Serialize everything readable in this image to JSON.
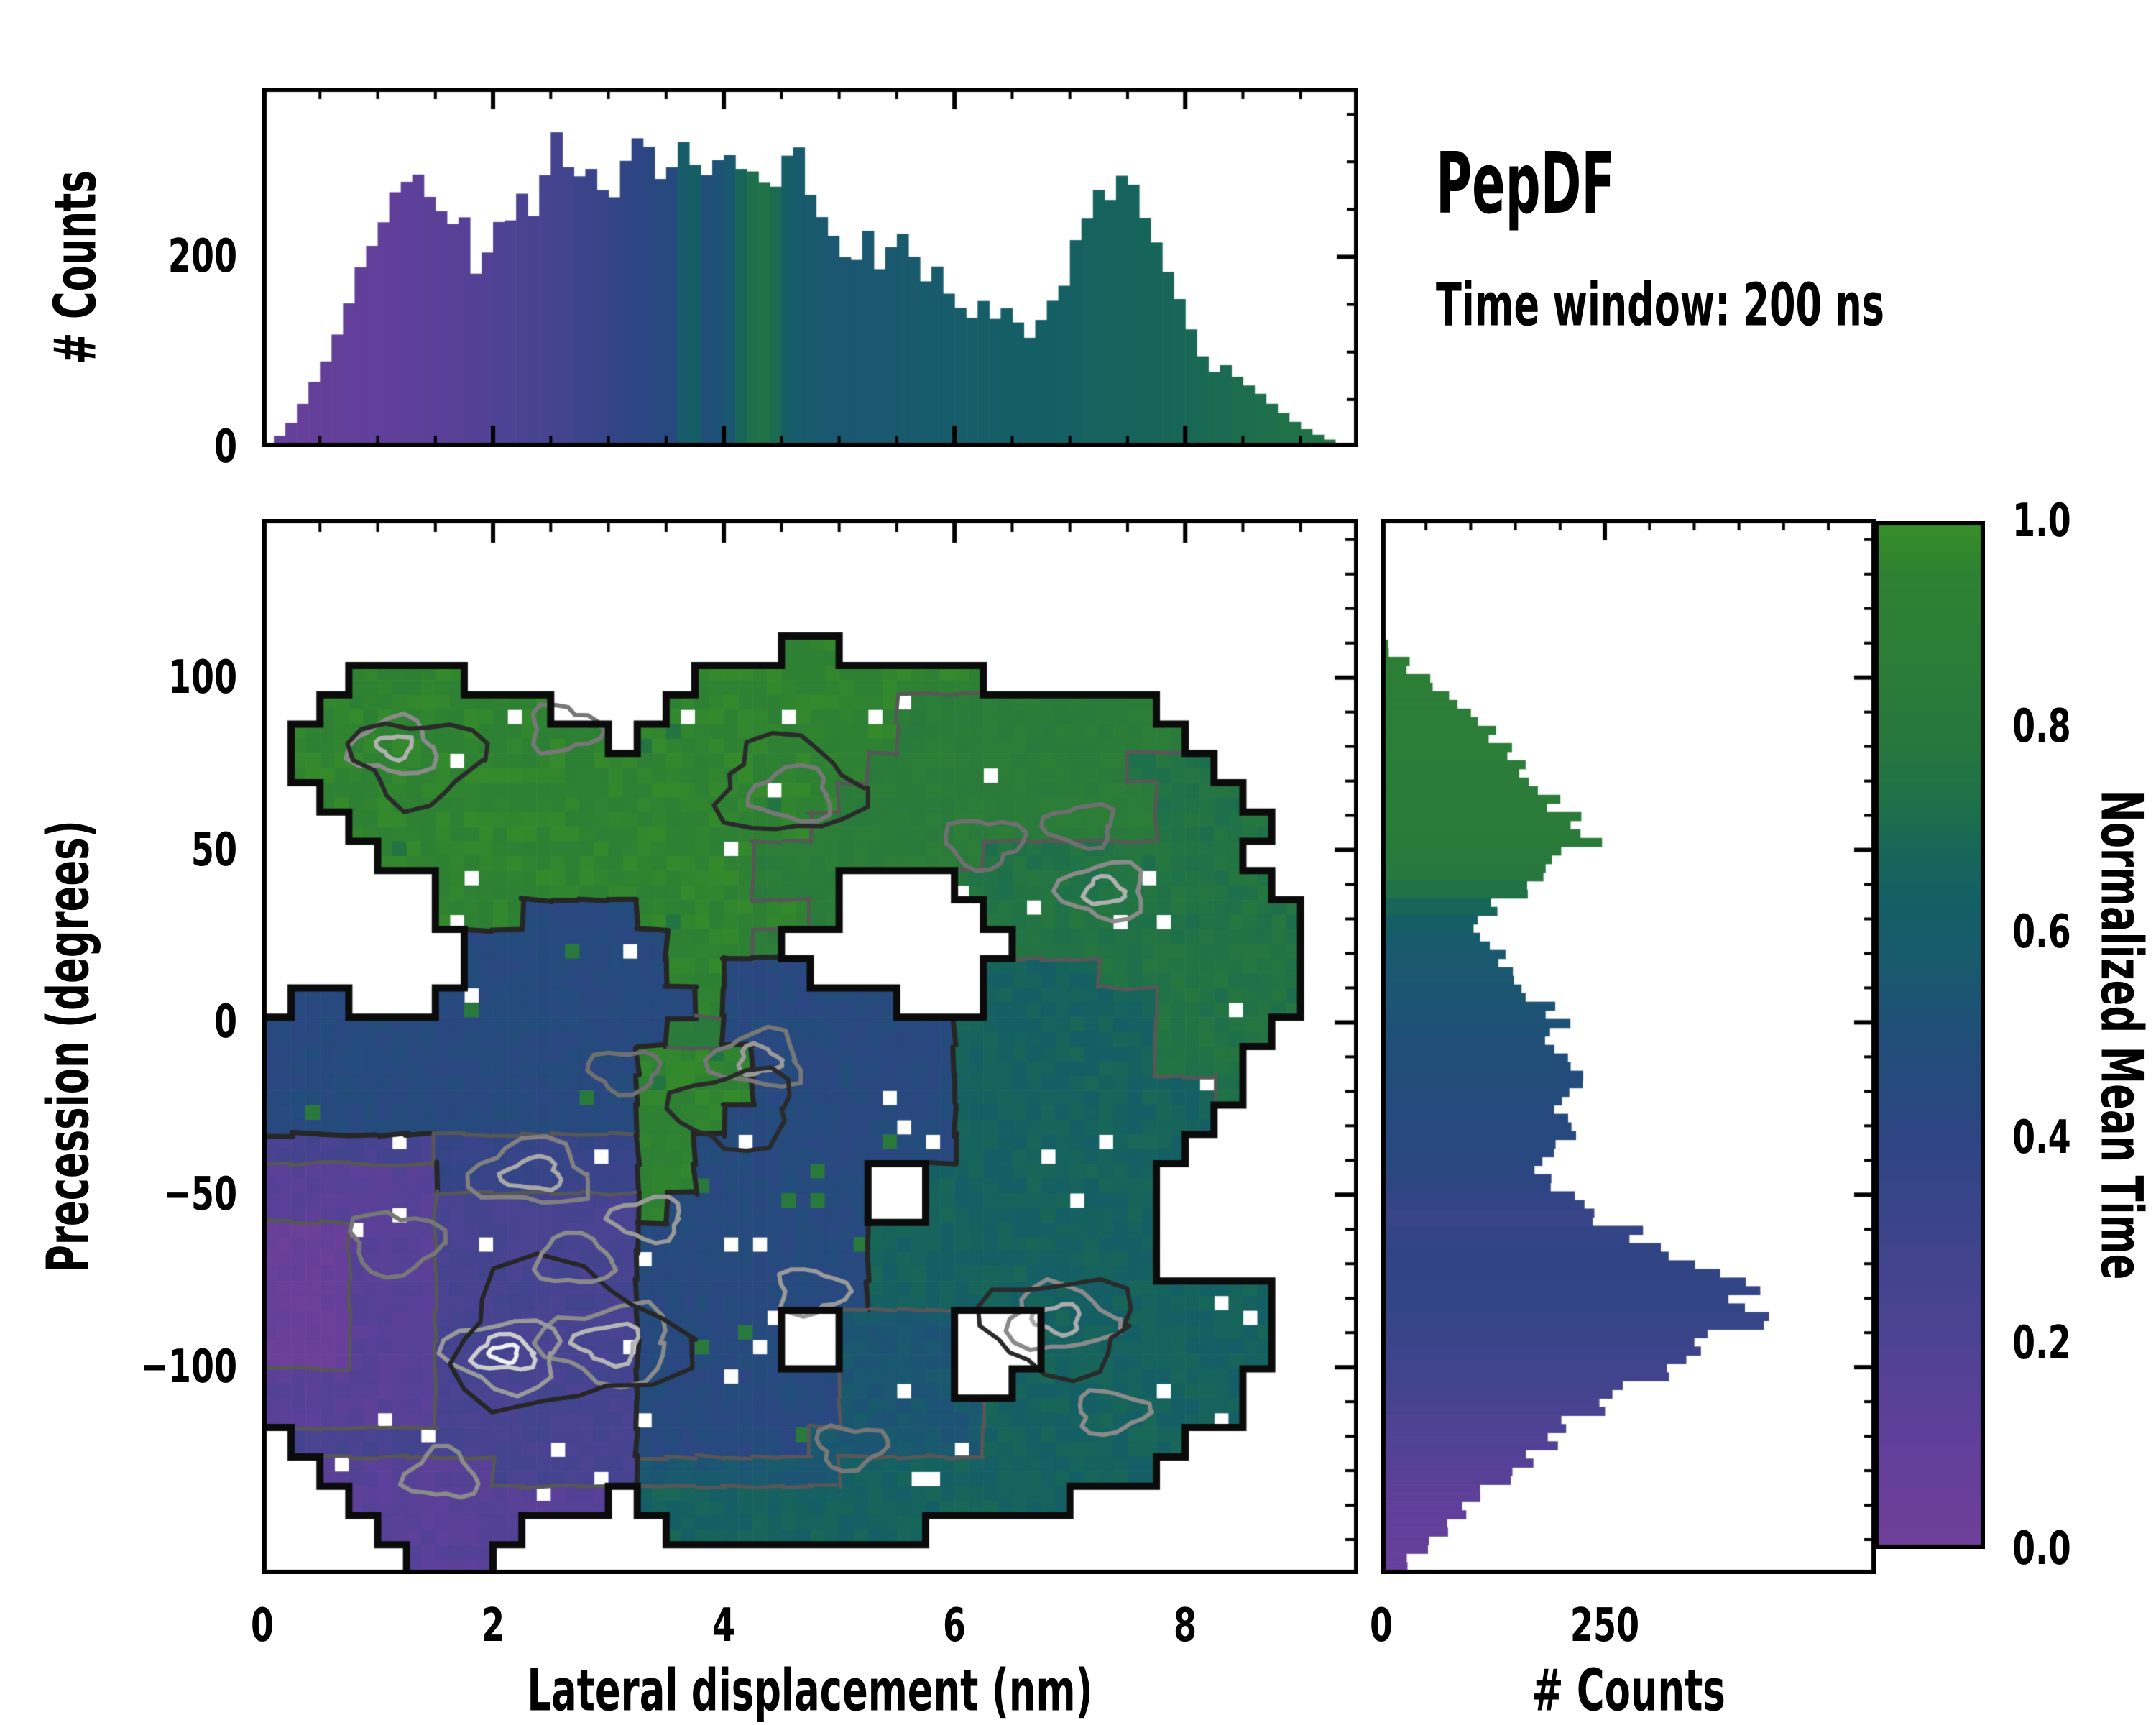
{
  "title": {
    "text": "PepDF",
    "subtitle": "Time window: 200 ns"
  },
  "colors": {
    "background": "#ffffff",
    "axis": "#000000",
    "outline": "#0b0b0b",
    "contour_dark": "#262626",
    "contour_mid": "#575757"
  },
  "colormap": {
    "name": "purple-blue-green",
    "stops": [
      [
        0.0,
        "#6f3f99"
      ],
      [
        0.1,
        "#613f9a"
      ],
      [
        0.2,
        "#4f4294"
      ],
      [
        0.3,
        "#3e448c"
      ],
      [
        0.4,
        "#2e4583"
      ],
      [
        0.5,
        "#204e79"
      ],
      [
        0.57,
        "#195a6d"
      ],
      [
        0.63,
        "#145f64"
      ],
      [
        0.68,
        "#186658"
      ],
      [
        0.73,
        "#1f7148"
      ],
      [
        0.78,
        "#267640"
      ],
      [
        0.85,
        "#2b7c39"
      ],
      [
        0.95,
        "#2e8132"
      ],
      [
        1.0,
        "#389027"
      ]
    ]
  },
  "chart_data": [
    {
      "id": "top_histogram",
      "type": "bar",
      "orientation": "vertical",
      "ylabel": "# Counts",
      "xlim": [
        0,
        9.5
      ],
      "ylim": [
        0,
        378
      ],
      "bin_width": 0.1,
      "x_start": 0,
      "values": [
        4,
        12,
        25,
        45,
        70,
        90,
        120,
        150,
        185,
        212,
        240,
        262,
        275,
        290,
        268,
        248,
        232,
        240,
        188,
        205,
        232,
        245,
        265,
        250,
        290,
        340,
        300,
        280,
        292,
        278,
        268,
        295,
        325,
        310,
        285,
        295,
        330,
        305,
        285,
        300,
        312,
        290,
        295,
        282,
        270,
        300,
        315,
        270,
        245,
        225,
        205,
        195,
        225,
        185,
        205,
        230,
        195,
        175,
        185,
        165,
        150,
        140,
        155,
        135,
        145,
        128,
        118,
        132,
        150,
        172,
        215,
        245,
        270,
        255,
        292,
        268,
        240,
        210,
        185,
        155,
        125,
        95,
        80,
        85,
        75,
        65,
        55,
        45,
        35,
        26,
        19,
        13,
        8,
        4,
        2
      ],
      "color_t": [
        0.07,
        0.07,
        0.07,
        0.07,
        0.08,
        0.08,
        0.08,
        0.09,
        0.09,
        0.1,
        0.1,
        0.11,
        0.12,
        0.12,
        0.13,
        0.14,
        0.15,
        0.16,
        0.17,
        0.18,
        0.2,
        0.21,
        0.22,
        0.24,
        0.25,
        0.27,
        0.28,
        0.3,
        0.32,
        0.34,
        0.36,
        0.38,
        0.4,
        0.42,
        0.44,
        0.46,
        0.6,
        0.62,
        0.5,
        0.52,
        0.56,
        0.68,
        0.72,
        0.74,
        0.7,
        0.62,
        0.58,
        0.57,
        0.56,
        0.55,
        0.55,
        0.55,
        0.56,
        0.55,
        0.56,
        0.57,
        0.57,
        0.58,
        0.58,
        0.59,
        0.6,
        0.6,
        0.61,
        0.61,
        0.62,
        0.62,
        0.62,
        0.63,
        0.63,
        0.64,
        0.64,
        0.65,
        0.65,
        0.66,
        0.66,
        0.66,
        0.67,
        0.67,
        0.68,
        0.68,
        0.69,
        0.69,
        0.7,
        0.7,
        0.71,
        0.71,
        0.72,
        0.72,
        0.73,
        0.73,
        0.74,
        0.74,
        0.75,
        0.75,
        0.75
      ],
      "yticks_major": [
        0,
        200
      ],
      "yticklabels": [
        "0",
        "200"
      ],
      "yticks_minor_step": 50,
      "xticks_major": [
        0,
        2,
        4,
        6,
        8
      ],
      "xticks_minor_step": 0.5
    },
    {
      "id": "main_heatmap",
      "type": "heatmap",
      "xlabel": "Lateral displacement (nm)",
      "ylabel": "Precession (degrees)",
      "xlim": [
        0,
        9.5
      ],
      "ylim": [
        -160,
        146
      ],
      "xticks_major": [
        0,
        2,
        4,
        6,
        8
      ],
      "xticklabels": [
        "0",
        "2",
        "4",
        "6",
        "8"
      ],
      "xticks_minor_step": 0.5,
      "yticks_major": [
        100,
        50,
        0,
        -50,
        -100
      ],
      "yticklabels": [
        "100",
        "50",
        "0",
        "−50",
        "−100"
      ],
      "yticks_minor_step": 10,
      "grid_cols": 38,
      "grid_rows": 36,
      "value_encoding": "char digit d means normalized mean time (d+0.5)/10, dot means no data",
      "cell_values": [
        "......................................",
        "......................................",
        "......................................",
        "......................................",
        "..................99..................",
        "...9999........9999999999.............",
        "..99999999....99999999888888888.......",
        ".99999999999.9999999998888888888......",
        ".99999999999999999999888888888777.....",
        "..99999999999999999988888888888777....",
        "...99999999999999998888888888887777...",
        "....999999999999988888888777777777....",
        "......99999999999888....77777777777...",
        "......99944449999998.....77777777777..",
        ".......44444449998........7777777777..",
        ".......444444499444......66667777777..",
        ".44...4444444449444444...66666677777..",
        "44444444444444884444444466666667777...",
        "4444444444444999944444446666666777....",
        "4444444444444999944444446666666667....",
        "444444444444499944444444666666666.....",
        "22222233333339944444444466666666......",
        "111111333333399444444..66666666.......",
        "111111222222294444444..66666666.......",
        "0001112222222444444446666666666.......",
        "0001112222222444444446666666666.......",
        "00011122222224444444466666666666666...",
        "000111222222244444..5555...66666666...",
        "000111222222244444..5555...66666666...",
        "111111222222244444445555..66666666....",
        "1111112222222444444455555666666666....",
        ".2222222222224444445555556666666......",
        "..11111122222555555566666666666.......",
        "...111111111.666666666666666..........",
        "....11111.....666666666...............",
        ".....111.............................."
      ],
      "noise": {
        "jitter": 0.035,
        "speck_rate": 0.018,
        "fleck_rate": 0.012,
        "seed": 42
      },
      "contour_rings": [
        {
          "x": 2.35,
          "y": -44,
          "rx": 0.5,
          "ry": 9.0,
          "c": "#808080"
        },
        {
          "x": 2.35,
          "y": -44,
          "rx": 0.25,
          "ry": 4.5,
          "c": "#a8a8a8"
        },
        {
          "x": 3.0,
          "y": -93,
          "rx": 0.55,
          "ry": 11.0,
          "c": "#8a8a8a"
        },
        {
          "x": 3.0,
          "y": -93,
          "rx": 0.28,
          "ry": 5.5,
          "c": "#b5b5b5"
        },
        {
          "x": 2.1,
          "y": -96,
          "rx": 0.5,
          "ry": 10.0,
          "c": "#999999"
        },
        {
          "x": 2.1,
          "y": -96,
          "rx": 0.26,
          "ry": 5.0,
          "c": "#cccccc"
        },
        {
          "x": 2.1,
          "y": -96,
          "rx": 0.12,
          "ry": 2.4,
          "c": "#efefef"
        },
        {
          "x": 2.6,
          "y": -92,
          "rx": 1.0,
          "ry": 20.0,
          "c": "#262626"
        },
        {
          "x": 1.55,
          "y": -131,
          "rx": 0.3,
          "ry": 7.0,
          "c": "#8a8a8a"
        },
        {
          "x": 1.15,
          "y": -64,
          "rx": 0.38,
          "ry": 9.0,
          "c": "#777777"
        },
        {
          "x": 3.35,
          "y": -57,
          "rx": 0.3,
          "ry": 6.5,
          "c": "#999999"
        },
        {
          "x": 4.3,
          "y": -11,
          "rx": 0.38,
          "ry": 8.0,
          "c": "#777777"
        },
        {
          "x": 4.3,
          "y": -11,
          "rx": 0.18,
          "ry": 4.0,
          "c": "#999999"
        },
        {
          "x": 3.15,
          "y": -14,
          "rx": 0.3,
          "ry": 6.0,
          "c": "#6f6f6f"
        },
        {
          "x": 4.1,
          "y": -25,
          "rx": 0.5,
          "ry": 11.0,
          "c": "#2a2a2a"
        },
        {
          "x": 7.3,
          "y": 38,
          "rx": 0.36,
          "ry": 8.0,
          "c": "#8a8a8a"
        },
        {
          "x": 7.3,
          "y": 38,
          "rx": 0.17,
          "ry": 3.8,
          "c": "#b0b0b0"
        },
        {
          "x": 7.1,
          "y": 57,
          "rx": 0.3,
          "ry": 6.0,
          "c": "#6f6f6f"
        },
        {
          "x": 6.25,
          "y": 52,
          "rx": 0.32,
          "ry": 7.0,
          "c": "#6f6f6f"
        },
        {
          "x": 6.9,
          "y": -86,
          "rx": 0.45,
          "ry": 9.5,
          "c": "#8a8a8a"
        },
        {
          "x": 6.9,
          "y": -86,
          "rx": 0.2,
          "ry": 4.2,
          "c": "#aaaaaa"
        },
        {
          "x": 6.9,
          "y": -88,
          "rx": 0.65,
          "ry": 14.0,
          "c": "#2a2a2a"
        },
        {
          "x": 7.35,
          "y": -113,
          "rx": 0.3,
          "ry": 6.0,
          "c": "#8a8a8a"
        },
        {
          "x": 4.6,
          "y": 66,
          "rx": 0.35,
          "ry": 7.5,
          "c": "#777777"
        },
        {
          "x": 4.55,
          "y": 68,
          "rx": 0.6,
          "ry": 13.0,
          "c": "#2a2a2a"
        },
        {
          "x": 2.6,
          "y": 85,
          "rx": 0.3,
          "ry": 6.5,
          "c": "#777777"
        },
        {
          "x": 1.15,
          "y": 80,
          "rx": 0.36,
          "ry": 8.0,
          "c": "#8a8a8a"
        },
        {
          "x": 1.15,
          "y": 80,
          "rx": 0.15,
          "ry": 3.2,
          "c": "#b0b0b0"
        },
        {
          "x": 1.35,
          "y": 76,
          "rx": 0.55,
          "ry": 12.0,
          "c": "#2a2a2a"
        },
        {
          "x": 4.75,
          "y": -78,
          "rx": 0.3,
          "ry": 6.5,
          "c": "#999999"
        },
        {
          "x": 2.7,
          "y": -69,
          "rx": 0.33,
          "ry": 7.0,
          "c": "#8a8a8a"
        },
        {
          "x": 5.1,
          "y": -123,
          "rx": 0.3,
          "ry": 6.0,
          "c": "#777777"
        }
      ]
    },
    {
      "id": "right_histogram",
      "type": "bar",
      "orientation": "horizontal",
      "xlabel": "# Counts",
      "xlim": [
        0,
        553
      ],
      "ylim": [
        -160,
        146
      ],
      "bin_height": 5,
      "y_start": 146,
      "values": [
        0,
        0,
        0,
        0,
        0,
        0,
        0,
        8,
        30,
        55,
        80,
        105,
        125,
        148,
        158,
        172,
        190,
        215,
        235,
        205,
        178,
        155,
        128,
        108,
        118,
        135,
        152,
        168,
        182,
        198,
        192,
        215,
        228,
        205,
        198,
        218,
        192,
        178,
        195,
        222,
        248,
        285,
        330,
        375,
        425,
        395,
        410,
        368,
        340,
        305,
        272,
        240,
        210,
        185,
        162,
        140,
        118,
        95,
        72,
        50,
        28,
        10
      ],
      "color_t": [
        0.9,
        0.9,
        0.9,
        0.9,
        0.9,
        0.9,
        0.9,
        0.9,
        0.9,
        0.89,
        0.88,
        0.88,
        0.87,
        0.87,
        0.86,
        0.86,
        0.85,
        0.85,
        0.84,
        0.82,
        0.79,
        0.74,
        0.68,
        0.62,
        0.58,
        0.56,
        0.55,
        0.54,
        0.53,
        0.52,
        0.5,
        0.49,
        0.48,
        0.47,
        0.46,
        0.45,
        0.44,
        0.43,
        0.41,
        0.36,
        0.33,
        0.36,
        0.38,
        0.38,
        0.37,
        0.36,
        0.35,
        0.33,
        0.31,
        0.29,
        0.27,
        0.24,
        0.21,
        0.19,
        0.17,
        0.15,
        0.13,
        0.11,
        0.1,
        0.08,
        0.07,
        0.06
      ],
      "xticks_major": [
        0,
        250
      ],
      "xticklabels": [
        "0",
        "250"
      ],
      "xticks_minor_step": 50,
      "yticks_major": [
        100,
        50,
        0,
        -50,
        -100
      ],
      "yticks_minor_step": 10
    },
    {
      "id": "colorbar",
      "type": "colorbar",
      "label": "Normalized Mean Time",
      "lim": [
        0,
        1
      ],
      "ticks_major": [
        0.0,
        0.2,
        0.4,
        0.6,
        0.8,
        1.0
      ],
      "ticklabels": [
        "0.0",
        "0.2",
        "0.4",
        "0.6",
        "0.8",
        "1.0"
      ],
      "ticks_minor_step": 0.05
    }
  ]
}
